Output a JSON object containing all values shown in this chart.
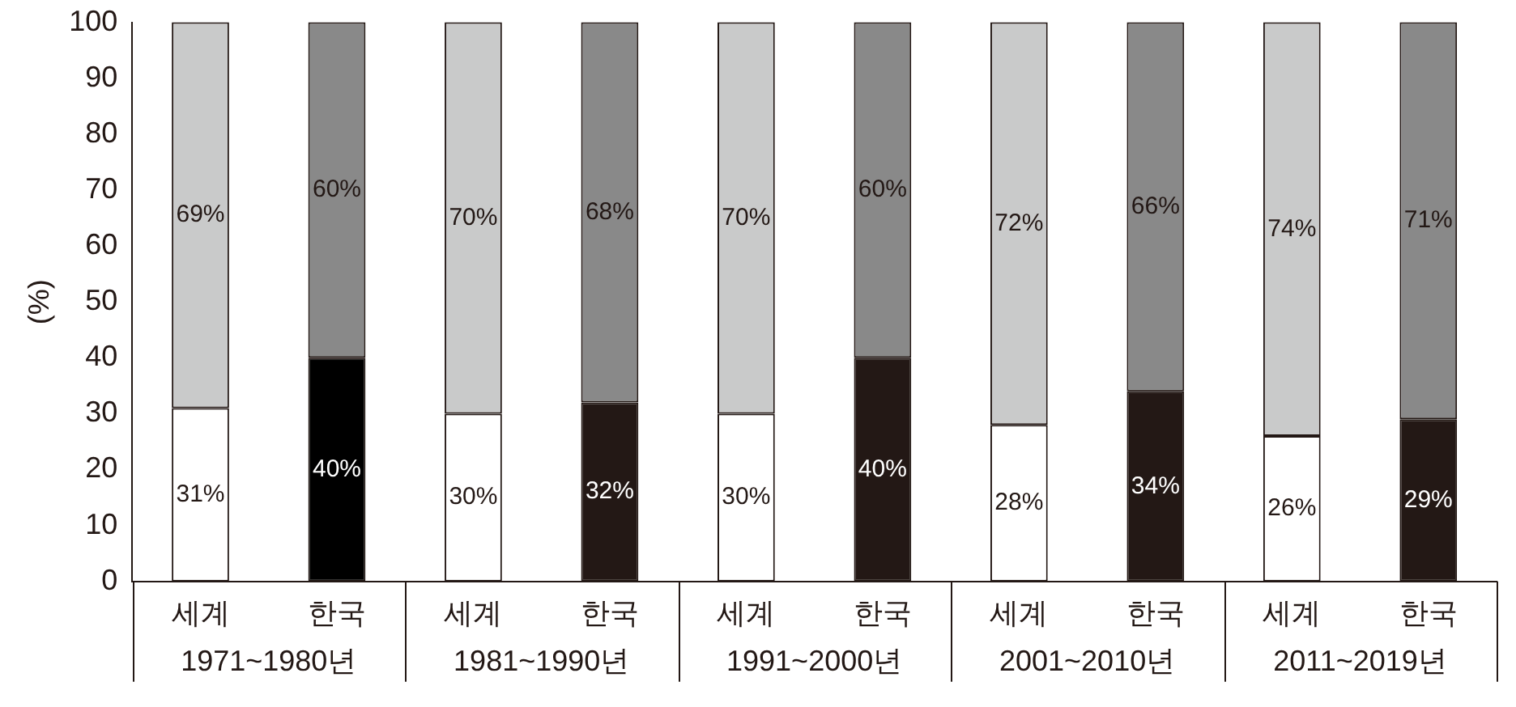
{
  "chart_data": {
    "type": "bar",
    "stacked": true,
    "ylabel": "(%)",
    "ylim": [
      0,
      100
    ],
    "yticks": [
      0,
      10,
      20,
      30,
      40,
      50,
      60,
      70,
      80,
      90,
      100
    ],
    "grid": false,
    "legend": false,
    "categories": [
      "세계",
      "한국",
      "세계",
      "한국",
      "세계",
      "한국",
      "세계",
      "한국",
      "세계",
      "한국"
    ],
    "annotations": [
      "1971~1980년",
      "1981~1990년",
      "1991~2000년",
      "2001~2010년",
      "2011~2019년"
    ],
    "series": [
      {
        "values": [
          31,
          40,
          30,
          32,
          30,
          40,
          28,
          34,
          26,
          29
        ],
        "colors": [
          "#ffffff",
          "#000000",
          "#ffffff",
          "#231815",
          "#ffffff",
          "#231815",
          "#ffffff",
          "#231815",
          "#ffffff",
          "#231815"
        ],
        "value_labels": [
          "31%",
          "40%",
          "30%",
          "32%",
          "30%",
          "40%",
          "28%",
          "34%",
          "26%",
          "29%"
        ]
      },
      {
        "values": [
          69,
          60,
          70,
          68,
          70,
          60,
          72,
          66,
          74,
          71
        ],
        "colors": [
          "#c9caca",
          "#898989",
          "#c9caca",
          "#898989",
          "#c9caca",
          "#898989",
          "#c9caca",
          "#898989",
          "#c9caca",
          "#898989"
        ],
        "value_labels": [
          "69%",
          "60%",
          "70%",
          "68%",
          "70%",
          "60%",
          "72%",
          "66%",
          "74%",
          "71%"
        ]
      }
    ]
  }
}
